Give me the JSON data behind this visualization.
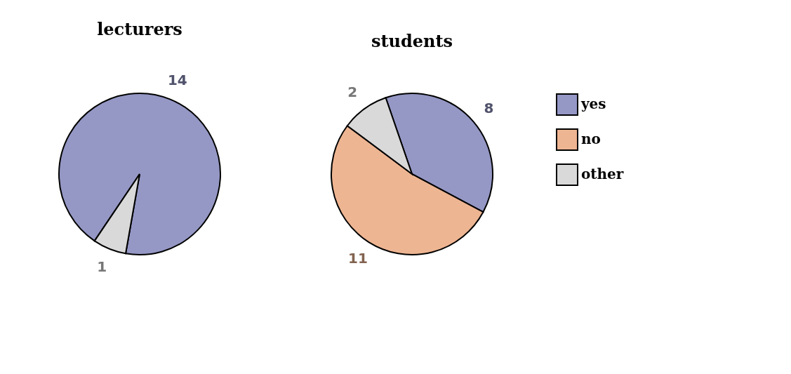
{
  "chart_data": [
    {
      "type": "pie",
      "title": "lecturers",
      "categories": [
        null,
        null
      ],
      "values": [
        14,
        1
      ],
      "colors": [
        "#9598c5",
        "#d9d9d9"
      ],
      "data_labels": true,
      "legend": false
    },
    {
      "type": "pie",
      "title": "students",
      "categories": [
        "yes",
        "no",
        "other"
      ],
      "values": [
        8,
        11,
        2
      ],
      "colors": [
        "#9598c5",
        "#eeb592",
        "#d9d9d9"
      ],
      "data_labels": true,
      "legend": "right"
    }
  ]
}
